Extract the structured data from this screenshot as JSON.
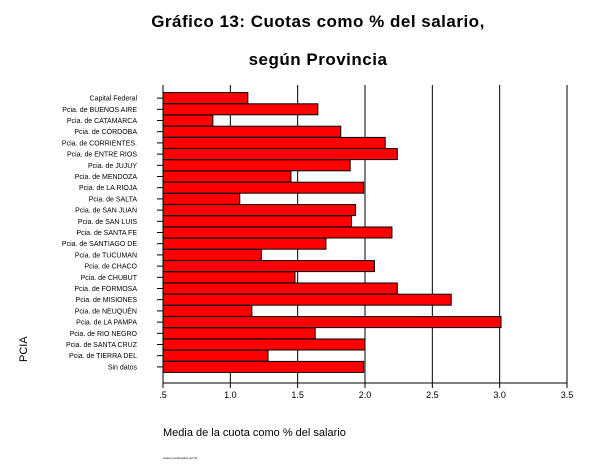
{
  "chart_data": {
    "type": "bar",
    "orientation": "horizontal",
    "title": "Gráfico 13: Cuotas como % del salario,",
    "subtitle": "según Provincia",
    "xlabel": "Media de la cuota como % del salario",
    "ylabel": "PCIA",
    "footer": "Casos ponderados por W",
    "xlim": [
      0.5,
      3.5
    ],
    "xticks": [
      ".5",
      "1.0",
      "1.5",
      "2.0",
      "2.5",
      "3.0",
      "3.5"
    ],
    "grid": true,
    "bar_color": "#ff0000",
    "categories": [
      "Capital Federal",
      "Pcia. de BUENOS AIRE",
      "Pcia. de CATAMARCA",
      "Pcia. de CÓRDOBA",
      "Pcia. de CORRIENTES.",
      "Pcia. de ENTRE RIOS",
      "Pcia. de JUJUY",
      "Pcia. de MENDOZA",
      "Pcia. de LA RIOJA",
      "Pcia. de SALTA",
      "Pcia. de SAN JUAN",
      "Pcia. de SAN LUIS",
      "Pcia. de SANTA FE",
      "Pcia. de SANTIAGO DE",
      "Pcia. de TUCUMAN",
      "Pcia. de CHACO",
      "Pcia. de CHUBUT",
      "Pcia. de FORMOSA",
      "Pcia. de MISIONES",
      "Pcia. de NEUQUÉN",
      "Pcia. de LA PAMPA",
      "Pcia. de RIO NEGRO",
      "Pcia. de SANTA CRUZ",
      "Pcia. de TIERRA DEL",
      "Sin datos"
    ],
    "values": [
      1.13,
      1.65,
      0.87,
      1.82,
      2.15,
      2.24,
      1.89,
      1.45,
      1.99,
      1.07,
      1.93,
      1.9,
      2.2,
      1.71,
      1.23,
      2.07,
      1.48,
      2.24,
      2.64,
      1.16,
      3.01,
      1.63,
      2.0,
      1.28,
      1.99
    ]
  }
}
